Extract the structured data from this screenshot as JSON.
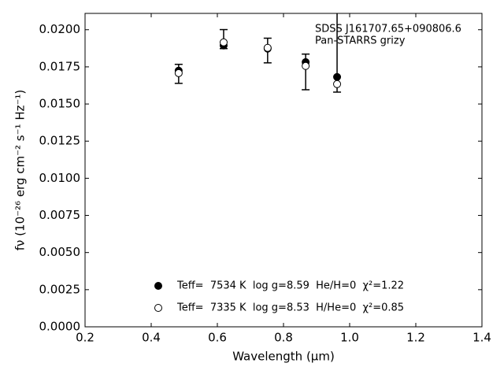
{
  "chart_data": {
    "type": "scatter",
    "xlabel": "Wavelength (μm)",
    "ylabel": "fν (10⁻²⁶ erg cm⁻² s⁻¹ Hz⁻¹)",
    "annotations": [
      "SDSS J161707.65+090806.6",
      "Pan-STARRS grizy"
    ],
    "x": [
      0.483,
      0.619,
      0.752,
      0.867,
      0.962
    ],
    "errorbars": {
      "values": [
        0.01703,
        0.01937,
        0.0186,
        0.01716,
        0.0185
      ],
      "errors": [
        0.00064,
        0.00064,
        0.00083,
        0.0012,
        0.0027
      ],
      "color": "#000000"
    },
    "series": [
      {
        "name": "Teff=  7534 K  log g=8.59  He/H=0  χ²=1.22",
        "color": "#000000",
        "filled": true,
        "values": [
          0.01724,
          0.01894,
          0.01873,
          0.01782,
          0.01682
        ]
      },
      {
        "name": "Teff=  7335 K  log g=8.53  H/He=0  χ²=0.85",
        "color": "#000000",
        "filled": false,
        "values": [
          0.01708,
          0.01915,
          0.01878,
          0.01756,
          0.01634
        ]
      }
    ],
    "xlim": [
      0.2,
      1.4
    ],
    "xticks": [
      0.2,
      0.4,
      0.6,
      0.8,
      {
        "value": 1.0,
        "label": "1.0"
      },
      1.2,
      1.4
    ],
    "ylim": [
      0,
      0.0211
    ],
    "yticks": [
      {
        "value": 0,
        "label": "0.0000"
      },
      {
        "value": 0.0025,
        "label": "0.0025"
      },
      {
        "value": 0.005,
        "label": "0.0050"
      },
      {
        "value": 0.0075,
        "label": "0.0075"
      },
      {
        "value": 0.01,
        "label": "0.0100"
      },
      {
        "value": 0.0125,
        "label": "0.0125"
      },
      {
        "value": 0.015,
        "label": "0.0150"
      },
      {
        "value": 0.0175,
        "label": "0.0175"
      },
      {
        "value": 0.02,
        "label": "0.0200"
      }
    ],
    "legend": "lower center"
  }
}
